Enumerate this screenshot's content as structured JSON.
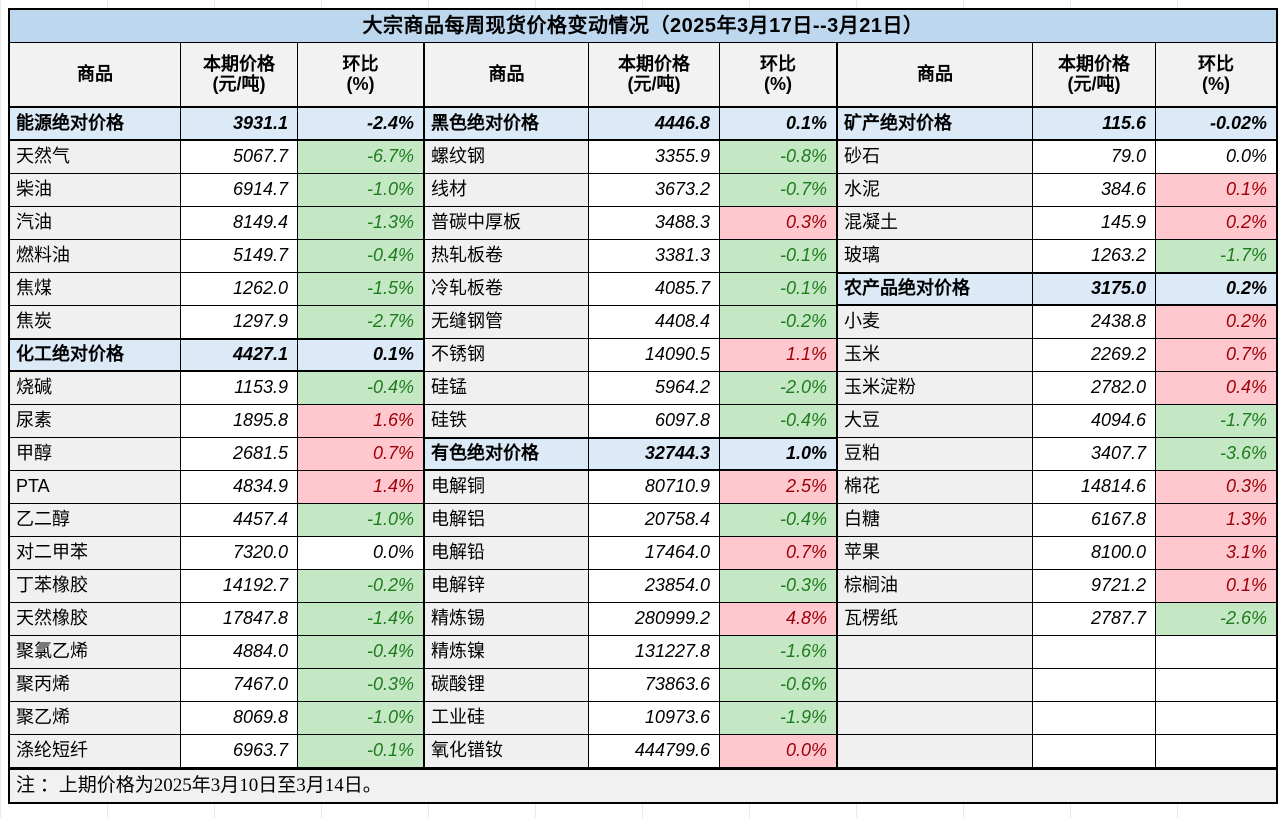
{
  "title": "大宗商品每周现货价格变动情况（2025年3月17日--3月21日）",
  "note": "注 ：上期价格为2025年3月10日至3月14日。",
  "header": {
    "commodity": "商品",
    "price_line1": "本期价格",
    "price_line2": "(元/吨)",
    "change_line1": "环比",
    "change_line2": "(%)"
  },
  "colors": {
    "title_bg": "#BDD7EE",
    "header_bg": "#F2F2F2",
    "label_bg": "#F0F0F0",
    "section_bg": "#DCE9F6",
    "green_bg": "#C4E8C4",
    "green_text": "#1E7B1E",
    "pink_bg": "#FFC7CE",
    "pink_text": "#9C0006",
    "footer_bg": "#F1F1F1"
  },
  "row_count": 20,
  "groups": [
    {
      "rows": [
        {
          "name": "能源绝对价格",
          "price": "3931.1",
          "change": "-2.4%",
          "type": "section",
          "color": "none"
        },
        {
          "name": "天然气",
          "price": "5067.7",
          "change": "-6.7%",
          "color": "green"
        },
        {
          "name": "柴油",
          "price": "6914.7",
          "change": "-1.0%",
          "color": "green"
        },
        {
          "name": "汽油",
          "price": "8149.4",
          "change": "-1.3%",
          "color": "green"
        },
        {
          "name": "燃料油",
          "price": "5149.7",
          "change": "-0.4%",
          "color": "green"
        },
        {
          "name": "焦煤",
          "price": "1262.0",
          "change": "-1.5%",
          "color": "green"
        },
        {
          "name": "焦炭",
          "price": "1297.9",
          "change": "-2.7%",
          "color": "green"
        },
        {
          "name": "化工绝对价格",
          "price": "4427.1",
          "change": "0.1%",
          "type": "section",
          "color": "none"
        },
        {
          "name": "烧碱",
          "price": "1153.9",
          "change": "-0.4%",
          "color": "green"
        },
        {
          "name": "尿素",
          "price": "1895.8",
          "change": "1.6%",
          "color": "pink"
        },
        {
          "name": "甲醇",
          "price": "2681.5",
          "change": "0.7%",
          "color": "pink"
        },
        {
          "name": "PTA",
          "price": "4834.9",
          "change": "1.4%",
          "color": "pink"
        },
        {
          "name": "乙二醇",
          "price": "4457.4",
          "change": "-1.0%",
          "color": "green"
        },
        {
          "name": "对二甲苯",
          "price": "7320.0",
          "change": "0.0%",
          "color": "none"
        },
        {
          "name": "丁苯橡胶",
          "price": "14192.7",
          "change": "-0.2%",
          "color": "green"
        },
        {
          "name": "天然橡胶",
          "price": "17847.8",
          "change": "-1.4%",
          "color": "green"
        },
        {
          "name": "聚氯乙烯",
          "price": "4884.0",
          "change": "-0.4%",
          "color": "green"
        },
        {
          "name": "聚丙烯",
          "price": "7467.0",
          "change": "-0.3%",
          "color": "green"
        },
        {
          "name": "聚乙烯",
          "price": "8069.8",
          "change": "-1.0%",
          "color": "green"
        },
        {
          "name": "涤纶短纤",
          "price": "6963.7",
          "change": "-0.1%",
          "color": "green"
        }
      ]
    },
    {
      "rows": [
        {
          "name": "黑色绝对价格",
          "price": "4446.8",
          "change": "0.1%",
          "type": "section",
          "color": "none"
        },
        {
          "name": "螺纹钢",
          "price": "3355.9",
          "change": "-0.8%",
          "color": "green"
        },
        {
          "name": "线材",
          "price": "3673.2",
          "change": "-0.7%",
          "color": "green"
        },
        {
          "name": "普碳中厚板",
          "price": "3488.3",
          "change": "0.3%",
          "color": "pink"
        },
        {
          "name": "热轧板卷",
          "price": "3381.3",
          "change": "-0.1%",
          "color": "green"
        },
        {
          "name": "冷轧板卷",
          "price": "4085.7",
          "change": "-0.1%",
          "color": "green"
        },
        {
          "name": "无缝钢管",
          "price": "4408.4",
          "change": "-0.2%",
          "color": "green"
        },
        {
          "name": "不锈钢",
          "price": "14090.5",
          "change": "1.1%",
          "color": "pink"
        },
        {
          "name": "硅锰",
          "price": "5964.2",
          "change": "-2.0%",
          "color": "green"
        },
        {
          "name": "硅铁",
          "price": "6097.8",
          "change": "-0.4%",
          "color": "green"
        },
        {
          "name": "有色绝对价格",
          "price": "32744.3",
          "change": "1.0%",
          "type": "section",
          "color": "none"
        },
        {
          "name": "电解铜",
          "price": "80710.9",
          "change": "2.5%",
          "color": "pink"
        },
        {
          "name": "电解铝",
          "price": "20758.4",
          "change": "-0.4%",
          "color": "green"
        },
        {
          "name": "电解铅",
          "price": "17464.0",
          "change": "0.7%",
          "color": "pink"
        },
        {
          "name": "电解锌",
          "price": "23854.0",
          "change": "-0.3%",
          "color": "green"
        },
        {
          "name": "精炼锡",
          "price": "280999.2",
          "change": "4.8%",
          "color": "pink"
        },
        {
          "name": "精炼镍",
          "price": "131227.8",
          "change": "-1.6%",
          "color": "green"
        },
        {
          "name": "碳酸锂",
          "price": "73863.6",
          "change": "-0.6%",
          "color": "green"
        },
        {
          "name": "工业硅",
          "price": "10973.6",
          "change": "-1.9%",
          "color": "green"
        },
        {
          "name": "氧化镨钕",
          "price": "444799.6",
          "change": "0.0%",
          "color": "pink"
        }
      ]
    },
    {
      "rows": [
        {
          "name": "矿产绝对价格",
          "price": "115.6",
          "change": "-0.02%",
          "type": "section",
          "color": "none"
        },
        {
          "name": "砂石",
          "price": "79.0",
          "change": "0.0%",
          "color": "none"
        },
        {
          "name": "水泥",
          "price": "384.6",
          "change": "0.1%",
          "color": "pink"
        },
        {
          "name": "混凝土",
          "price": "145.9",
          "change": "0.2%",
          "color": "pink"
        },
        {
          "name": "玻璃",
          "price": "1263.2",
          "change": "-1.7%",
          "color": "green"
        },
        {
          "name": "农产品绝对价格",
          "price": "3175.0",
          "change": "0.2%",
          "type": "section",
          "color": "none"
        },
        {
          "name": "小麦",
          "price": "2438.8",
          "change": "0.2%",
          "color": "pink"
        },
        {
          "name": "玉米",
          "price": "2269.2",
          "change": "0.7%",
          "color": "pink"
        },
        {
          "name": "玉米淀粉",
          "price": "2782.0",
          "change": "0.4%",
          "color": "pink"
        },
        {
          "name": "大豆",
          "price": "4094.6",
          "change": "-1.7%",
          "color": "green"
        },
        {
          "name": "豆粕",
          "price": "3407.7",
          "change": "-3.6%",
          "color": "green"
        },
        {
          "name": "棉花",
          "price": "14814.6",
          "change": "0.3%",
          "color": "pink"
        },
        {
          "name": "白糖",
          "price": "6167.8",
          "change": "1.3%",
          "color": "pink"
        },
        {
          "name": "苹果",
          "price": "8100.0",
          "change": "3.1%",
          "color": "pink"
        },
        {
          "name": "棕榈油",
          "price": "9721.2",
          "change": "0.1%",
          "color": "pink"
        },
        {
          "name": "瓦楞纸",
          "price": "2787.7",
          "change": "-2.6%",
          "color": "green"
        },
        {
          "name": "",
          "price": "",
          "change": "",
          "type": "empty",
          "color": "none"
        },
        {
          "name": "",
          "price": "",
          "change": "",
          "type": "empty",
          "color": "none"
        },
        {
          "name": "",
          "price": "",
          "change": "",
          "type": "empty",
          "color": "none"
        },
        {
          "name": "",
          "price": "",
          "change": "",
          "type": "empty",
          "color": "none"
        }
      ]
    }
  ]
}
